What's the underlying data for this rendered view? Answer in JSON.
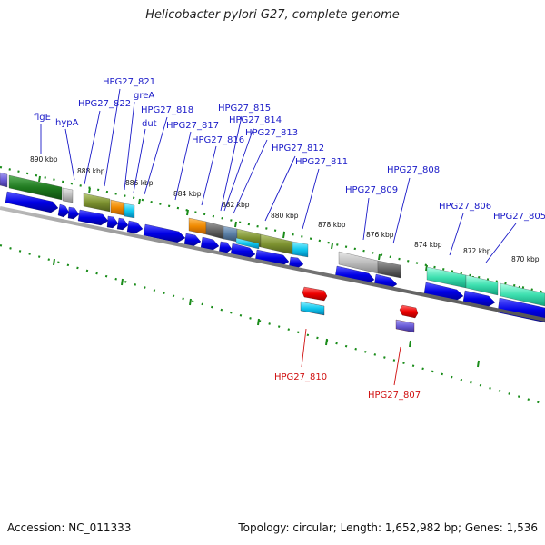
{
  "title": "Helicobacter pylori G27, complete genome",
  "footer": {
    "accession": "Accession: NC_011333",
    "summary": "Topology: circular; Length: 1,652,982 bp; Genes: 1,536"
  },
  "ruler": [
    "890 kbp",
    "888 kbp",
    "886 kbp",
    "884 kbp",
    "882 kbp",
    "880 kbp",
    "878 kbp",
    "876 kbp",
    "874 kbp",
    "872 kbp",
    "870 kbp"
  ],
  "colors": {
    "forward_label": "#1a1ac8",
    "reverse_label": "#d01010",
    "backbone": "#888888",
    "ticks": "#1a8c1a"
  },
  "forward_labels": [
    "flgE",
    "hypA",
    "HPG27_822",
    "HPG27_821",
    "greA",
    "dut",
    "HPG27_818",
    "HPG27_817",
    "HPG27_816",
    "HPG27_815",
    "HPG27_814",
    "HPG27_813",
    "HPG27_812",
    "HPG27_811",
    "HPG27_809",
    "HPG27_808",
    "HPG27_806",
    "HPG27_805"
  ],
  "reverse_labels": [
    "HPG27_810",
    "HPG27_807"
  ]
}
